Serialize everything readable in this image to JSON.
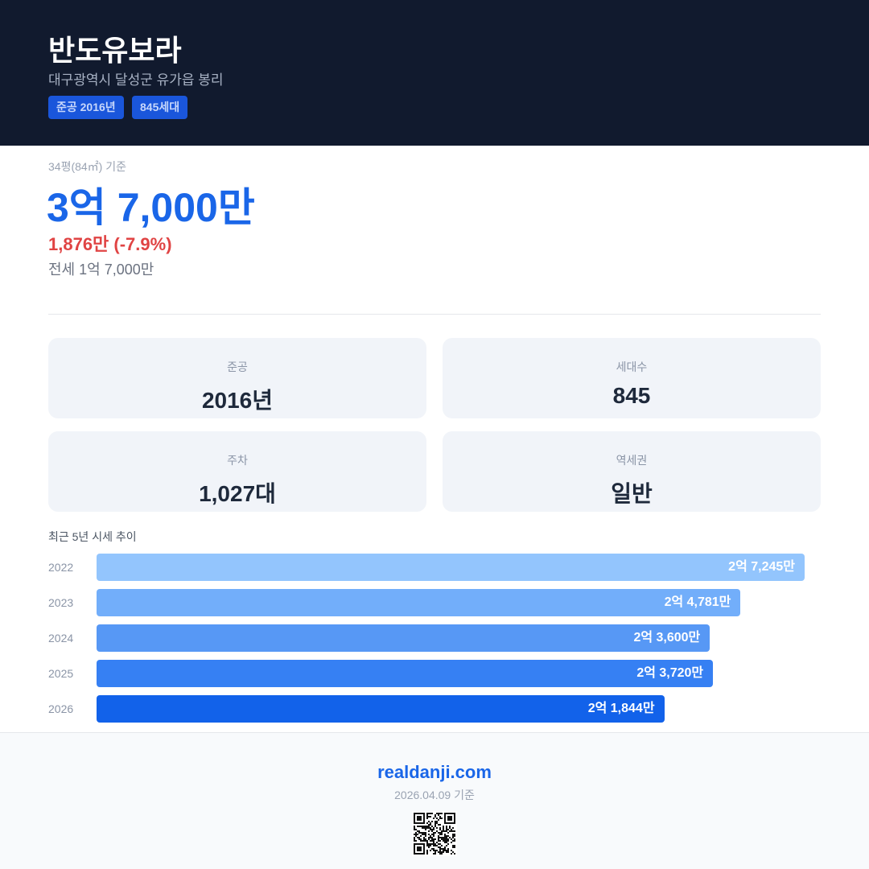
{
  "header": {
    "title": "반도유보라",
    "address": "대구광역시 달성군 유가읍 봉리",
    "badges": [
      "준공 2016년",
      "845세대"
    ]
  },
  "price": {
    "basis": "34평(84㎡) 기준",
    "sale": "3억 7,000만",
    "change": "1,876만 (-7.9%)",
    "jeonse": "전세 1억 7,000만"
  },
  "stats": [
    {
      "label": "준공",
      "value": "2016년"
    },
    {
      "label": "세대수",
      "value": "845"
    },
    {
      "label": "주차",
      "value": "1,027대"
    },
    {
      "label": "역세권",
      "value": "일반"
    }
  ],
  "trend": {
    "title": "최근 5년 시세 추이",
    "categories": [
      "2022",
      "2023",
      "2024",
      "2025",
      "2026"
    ],
    "values": [
      27245,
      24781,
      23600,
      23720,
      21844
    ],
    "value_labels": [
      "2억 7,245만",
      "2억 4,781만",
      "2억 3,600만",
      "2억 3,720만",
      "2억 1,844만"
    ],
    "colors": [
      "#93c5fd",
      "#72aefa",
      "#5798f5",
      "#3680f3",
      "#1262ea"
    ]
  },
  "footer": {
    "site": "realdanji.com",
    "date": "2026.04.09 기준"
  }
}
